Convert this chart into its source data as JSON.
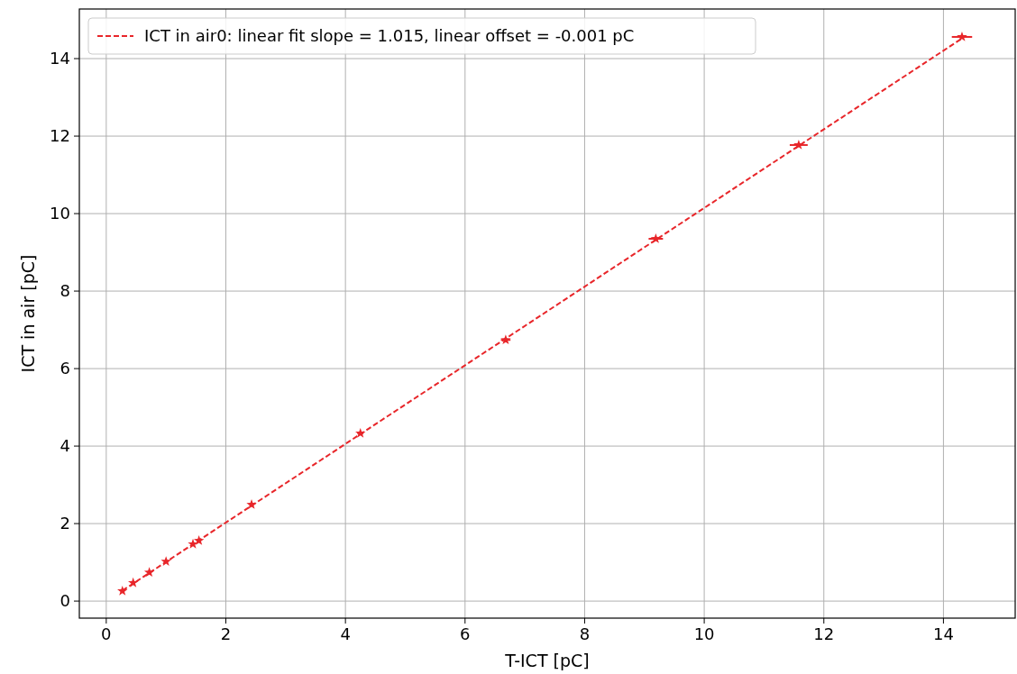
{
  "chart_data": {
    "type": "scatter",
    "xlabel": "T-ICT [pC]",
    "ylabel": "ICT in air [pC]",
    "xlim": [
      -0.45,
      15.2
    ],
    "ylim": [
      -0.44,
      15.28
    ],
    "xticks": [
      0,
      2,
      4,
      6,
      8,
      10,
      12,
      14
    ],
    "yticks": [
      0,
      2,
      4,
      6,
      8,
      10,
      12,
      14
    ],
    "grid": true,
    "legend": "top left",
    "series": [
      {
        "color": "#e8262a",
        "marker": "star",
        "x": [
          0.27,
          0.45,
          0.72,
          1.0,
          1.45,
          1.55,
          2.43,
          4.25,
          6.68,
          9.19,
          11.58,
          14.31
        ],
        "values": [
          0.26,
          0.47,
          0.74,
          1.02,
          1.47,
          1.56,
          2.49,
          4.33,
          6.74,
          9.35,
          11.77,
          14.56
        ],
        "xerrors": [
          null,
          null,
          null,
          null,
          null,
          null,
          null,
          0.05,
          0.08,
          0.12,
          0.15,
          0.17
        ]
      },
      {
        "type": "line",
        "name": "ICT in air0: linear fit slope = 1.015, linear offset = -0.001 pC",
        "color": "#e8262a",
        "line_style": "dashed",
        "x": [
          0.27,
          14.31
        ],
        "values": [
          0.27,
          14.52
        ]
      }
    ]
  }
}
